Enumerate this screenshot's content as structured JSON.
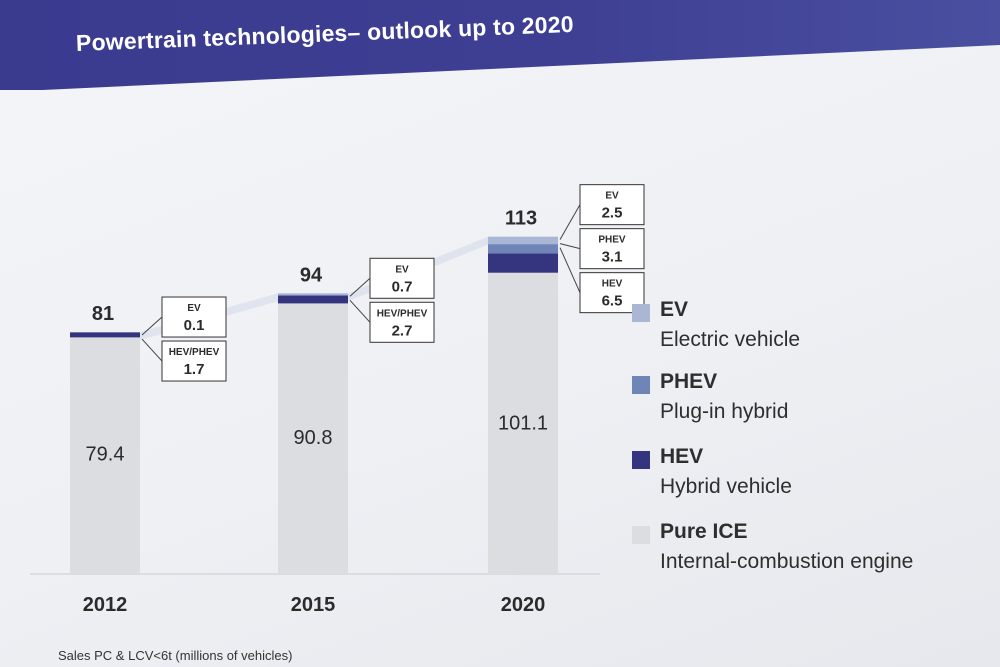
{
  "slide": {
    "title": "Powertrain technologies– outlook up to 2020",
    "footnote": "Sales PC & LCV<6t  (millions of vehicles)"
  },
  "colors": {
    "ev": "#a9b7d4",
    "phev": "#6f85b8",
    "hev": "#35357f",
    "ice": "#dcdde1"
  },
  "legend": [
    {
      "key": "ev",
      "abbr": "EV",
      "full": "Electric vehicle"
    },
    {
      "key": "phev",
      "abbr": "PHEV",
      "full": "Plug-in hybrid"
    },
    {
      "key": "hev",
      "abbr": "HEV",
      "full": "Hybrid vehicle"
    },
    {
      "key": "ice",
      "abbr": "Pure ICE",
      "full": "Internal-combustion engine"
    }
  ],
  "chart_data": {
    "type": "bar",
    "stacked": true,
    "title": "Powertrain technologies– outlook up to 2020",
    "xlabel": "",
    "ylabel": "Sales PC & LCV<6t (millions of vehicles)",
    "categories": [
      "2012",
      "2015",
      "2020"
    ],
    "totals": [
      "81",
      "94",
      "113"
    ],
    "ylim": [
      0,
      120
    ],
    "series": [
      {
        "name": "Pure ICE",
        "key": "ice",
        "values": [
          79.4,
          90.8,
          101.1
        ],
        "labels": [
          "79.4",
          "90.8",
          "101.1"
        ]
      },
      {
        "name": "HEV",
        "key": "hev",
        "values": [
          1.7,
          2.7,
          6.5
        ]
      },
      {
        "name": "PHEV",
        "key": "phev",
        "values": [
          0,
          0,
          3.1
        ]
      },
      {
        "name": "EV",
        "key": "ev",
        "values": [
          0.1,
          0.7,
          2.5
        ]
      }
    ],
    "callouts": [
      [
        {
          "label": "EV",
          "value": "0.1"
        },
        {
          "label": "HEV/PHEV",
          "value": "1.7"
        }
      ],
      [
        {
          "label": "EV",
          "value": "0.7"
        },
        {
          "label": "HEV/PHEV",
          "value": "2.7"
        }
      ],
      [
        {
          "label": "EV",
          "value": "2.5"
        },
        {
          "label": "PHEV",
          "value": "3.1"
        },
        {
          "label": "HEV",
          "value": "6.5"
        }
      ]
    ]
  }
}
